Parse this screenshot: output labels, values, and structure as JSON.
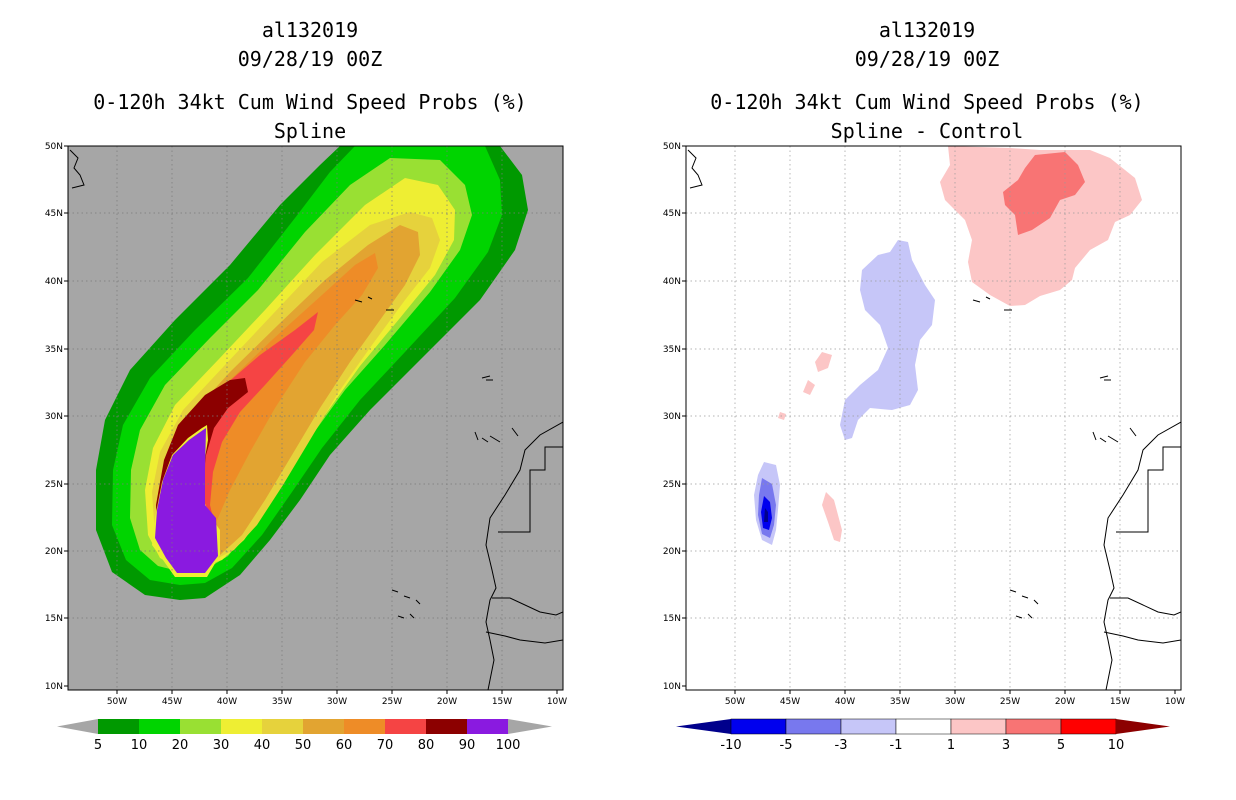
{
  "chart_data": [
    {
      "type": "heatmap",
      "panel": "left",
      "title_lines": [
        "al132019",
        "09/28/19 00Z",
        "0-120h 34kt Cum Wind Speed Probs (%)",
        "Spline"
      ],
      "x_ticks": [
        "50W",
        "45W",
        "40W",
        "35W",
        "30W",
        "25W",
        "20W",
        "15W",
        "10W"
      ],
      "y_ticks": [
        "50N",
        "45N",
        "40N",
        "35N",
        "30N",
        "25N",
        "20N",
        "15N",
        "10N"
      ],
      "xlim": [
        -55,
        -10
      ],
      "ylim": [
        10,
        50
      ],
      "colorbar": {
        "labels": [
          "5",
          "10",
          "20",
          "30",
          "40",
          "50",
          "60",
          "70",
          "80",
          "90",
          "100"
        ],
        "colors": [
          "#009900",
          "#00d400",
          "#99e033",
          "#eeee33",
          "#e6d23c",
          "#e2a431",
          "#ee8c27",
          "#f54444",
          "#8c0000",
          "#8a1ae0"
        ]
      },
      "background": "#a6a6a6"
    },
    {
      "type": "heatmap",
      "panel": "right",
      "title_lines": [
        "al132019",
        "09/28/19 00Z",
        "0-120h 34kt Cum Wind Speed Probs (%)",
        "Spline - Control"
      ],
      "x_ticks": [
        "50W",
        "45W",
        "40W",
        "35W",
        "30W",
        "25W",
        "20W",
        "15W",
        "10W"
      ],
      "y_ticks": [
        "50N",
        "45N",
        "40N",
        "35N",
        "30N",
        "25N",
        "20N",
        "15N",
        "10N"
      ],
      "xlim": [
        -55,
        -10
      ],
      "ylim": [
        10,
        50
      ],
      "colorbar": {
        "labels": [
          "-10",
          "-5",
          "-3",
          "-1",
          "1",
          "3",
          "5",
          "10"
        ],
        "colors": [
          "#00008c",
          "#0000ee",
          "#7878ee",
          "#c6c6f8",
          "#ffffff",
          "#fcc6c6",
          "#f87474",
          "#ff0000",
          "#8c0000"
        ]
      },
      "background": "#ffffff"
    }
  ]
}
